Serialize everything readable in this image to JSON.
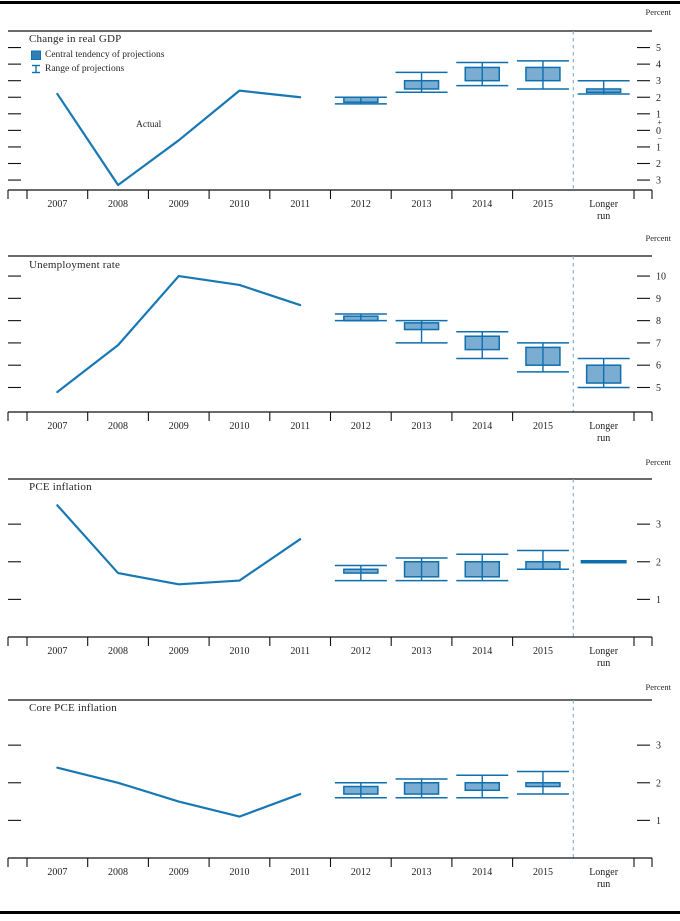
{
  "figure": {
    "unit_label": "Percent",
    "actual_label": "Actual",
    "legend": [
      {
        "symbol": "central-tendency-box",
        "label": "Central tendency of projections"
      },
      {
        "symbol": "range-i-beam",
        "label": "Range of projections"
      }
    ],
    "colors": {
      "line": "#1878b4",
      "box_fill": "#7badd3",
      "box_stroke": "#0d6fad",
      "separator_dash": "#7cabc8",
      "axis": "#111111",
      "text": "#222222"
    }
  },
  "chart_data": [
    {
      "type": "line+box-whisker",
      "title": "Change in real GDP",
      "unit_label": "Percent",
      "x_categories": [
        "2007",
        "2008",
        "2009",
        "2010",
        "2011",
        "2012",
        "2013",
        "2014",
        "2015",
        "Longer run"
      ],
      "actual_line": {
        "label": "Actual",
        "x": [
          "2007",
          "2008",
          "2009",
          "2010",
          "2011"
        ],
        "values": [
          2.2,
          -3.3,
          -0.6,
          2.4,
          2.0
        ]
      },
      "projections": [
        {
          "x": "2012",
          "central_tendency": [
            1.7,
            2.0
          ],
          "range": [
            1.6,
            2.0
          ]
        },
        {
          "x": "2013",
          "central_tendency": [
            2.5,
            3.0
          ],
          "range": [
            2.3,
            3.5
          ]
        },
        {
          "x": "2014",
          "central_tendency": [
            3.0,
            3.8
          ],
          "range": [
            2.7,
            4.1
          ]
        },
        {
          "x": "2015",
          "central_tendency": [
            3.0,
            3.8
          ],
          "range": [
            2.5,
            4.2
          ]
        },
        {
          "x": "Longer run",
          "central_tendency": [
            2.3,
            2.5
          ],
          "range": [
            2.2,
            3.0
          ]
        }
      ],
      "y_axis": {
        "tick_values": [
          5,
          4,
          3,
          2,
          1,
          0,
          -1,
          -2,
          -3
        ],
        "tick_labels": [
          "5",
          "4",
          "3",
          "2",
          "1",
          "0",
          "1",
          "2",
          "3"
        ],
        "ylim": [
          -3.6,
          6.0
        ],
        "zero_plus_minus": true
      },
      "separator_before": "Longer run",
      "legend_shown": true
    },
    {
      "type": "line+box-whisker",
      "title": "Unemployment rate",
      "unit_label": "Percent",
      "x_categories": [
        "2007",
        "2008",
        "2009",
        "2010",
        "2011",
        "2012",
        "2013",
        "2014",
        "2015",
        "Longer run"
      ],
      "actual_line": {
        "label": "Actual",
        "x": [
          "2007",
          "2008",
          "2009",
          "2010",
          "2011"
        ],
        "values": [
          4.8,
          6.9,
          10.0,
          9.6,
          8.7
        ]
      },
      "projections": [
        {
          "x": "2012",
          "central_tendency": [
            8.0,
            8.2
          ],
          "range": [
            8.0,
            8.3
          ]
        },
        {
          "x": "2013",
          "central_tendency": [
            7.6,
            7.9
          ],
          "range": [
            7.0,
            8.0
          ]
        },
        {
          "x": "2014",
          "central_tendency": [
            6.7,
            7.3
          ],
          "range": [
            6.3,
            7.5
          ]
        },
        {
          "x": "2015",
          "central_tendency": [
            6.0,
            6.8
          ],
          "range": [
            5.7,
            7.0
          ]
        },
        {
          "x": "Longer run",
          "central_tendency": [
            5.2,
            6.0
          ],
          "range": [
            5.0,
            6.3
          ]
        }
      ],
      "y_axis": {
        "tick_values": [
          10,
          9,
          8,
          7,
          6,
          5
        ],
        "tick_labels": [
          "10",
          "9",
          "8",
          "7",
          "6",
          "5"
        ],
        "ylim": [
          3.9,
          10.9
        ],
        "zero_plus_minus": false
      },
      "separator_before": "Longer run",
      "legend_shown": false
    },
    {
      "type": "line+box-whisker",
      "title": "PCE inflation",
      "unit_label": "Percent",
      "x_categories": [
        "2007",
        "2008",
        "2009",
        "2010",
        "2011",
        "2012",
        "2013",
        "2014",
        "2015",
        "Longer run"
      ],
      "actual_line": {
        "label": "Actual",
        "x": [
          "2007",
          "2008",
          "2009",
          "2010",
          "2011"
        ],
        "values": [
          3.5,
          1.7,
          1.4,
          1.5,
          2.6
        ]
      },
      "projections": [
        {
          "x": "2012",
          "central_tendency": [
            1.7,
            1.8
          ],
          "range": [
            1.5,
            1.9
          ]
        },
        {
          "x": "2013",
          "central_tendency": [
            1.6,
            2.0
          ],
          "range": [
            1.5,
            2.1
          ]
        },
        {
          "x": "2014",
          "central_tendency": [
            1.6,
            2.0
          ],
          "range": [
            1.5,
            2.2
          ]
        },
        {
          "x": "2015",
          "central_tendency": [
            1.8,
            2.0
          ],
          "range": [
            1.8,
            2.3
          ]
        },
        {
          "x": "Longer run",
          "style": "thick_line",
          "value": 2.0
        }
      ],
      "y_axis": {
        "tick_values": [
          3,
          2,
          1
        ],
        "tick_labels": [
          "3",
          "2",
          "1"
        ],
        "ylim": [
          0.0,
          4.2
        ],
        "zero_plus_minus": false
      },
      "separator_before": "Longer run",
      "legend_shown": false
    },
    {
      "type": "line+box-whisker",
      "title": "Core PCE inflation",
      "unit_label": "Percent",
      "x_categories": [
        "2007",
        "2008",
        "2009",
        "2010",
        "2011",
        "2012",
        "2013",
        "2014",
        "2015",
        "Longer run"
      ],
      "actual_line": {
        "label": "Actual",
        "x": [
          "2007",
          "2008",
          "2009",
          "2010",
          "2011"
        ],
        "values": [
          2.4,
          2.0,
          1.5,
          1.1,
          1.7
        ]
      },
      "projections": [
        {
          "x": "2012",
          "central_tendency": [
            1.7,
            1.9
          ],
          "range": [
            1.6,
            2.0
          ]
        },
        {
          "x": "2013",
          "central_tendency": [
            1.7,
            2.0
          ],
          "range": [
            1.6,
            2.1
          ]
        },
        {
          "x": "2014",
          "central_tendency": [
            1.8,
            2.0
          ],
          "range": [
            1.6,
            2.2
          ]
        },
        {
          "x": "2015",
          "central_tendency": [
            1.9,
            2.0
          ],
          "range": [
            1.7,
            2.3
          ]
        }
      ],
      "y_axis": {
        "tick_values": [
          3,
          2,
          1
        ],
        "tick_labels": [
          "3",
          "2",
          "1"
        ],
        "ylim": [
          0.0,
          4.2
        ],
        "zero_plus_minus": false
      },
      "separator_before": "Longer run",
      "legend_shown": false
    }
  ]
}
